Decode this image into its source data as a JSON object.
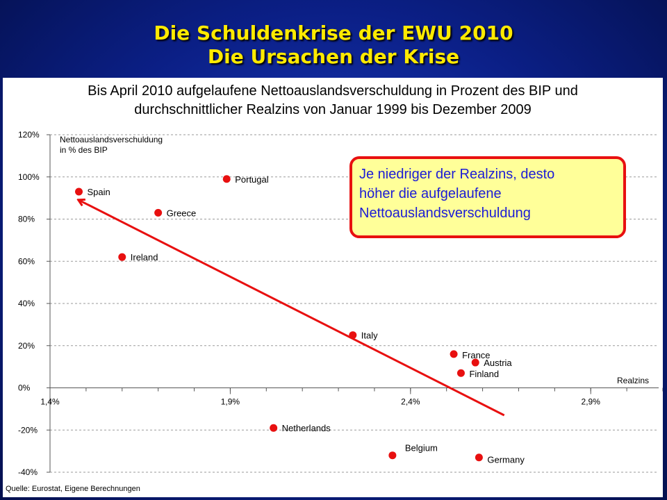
{
  "slide": {
    "title_line1": "Die Schuldenkrise der EWU 2010",
    "title_line2": "Die Ursachen der Krise"
  },
  "chart_data": {
    "type": "scatter",
    "title_line1": "Bis April 2010 aufgelaufene Nettoauslandsverschuldung in Prozent des BIP und",
    "title_line2": "durchschnittlicher Realzins von Januar 1999 bis Dezember 2009",
    "ylabel_line1": "Nettoauslandsverschuldung",
    "ylabel_line2": "in % des BIP",
    "xlabel": "Realzins",
    "xlim": [
      1.4,
      3.1
    ],
    "ylim": [
      -40,
      120
    ],
    "xticks": [
      1.4,
      1.9,
      2.4,
      2.9
    ],
    "xtick_labels": [
      "1,4%",
      "1,9%",
      "2,4%",
      "2,9%"
    ],
    "yticks": [
      120,
      100,
      80,
      60,
      40,
      20,
      0,
      -20,
      -40
    ],
    "ytick_labels": [
      "120%",
      "100%",
      "80%",
      "60%",
      "40%",
      "20%",
      "0%",
      "-20%",
      "-40%"
    ],
    "points": [
      {
        "label": "Spain",
        "x": 1.48,
        "y": 93
      },
      {
        "label": "Portugal",
        "x": 1.89,
        "y": 99
      },
      {
        "label": "Greece",
        "x": 1.7,
        "y": 83
      },
      {
        "label": "Ireland",
        "x": 1.6,
        "y": 62
      },
      {
        "label": "Italy",
        "x": 2.24,
        "y": 25
      },
      {
        "label": "France",
        "x": 2.52,
        "y": 16
      },
      {
        "label": "Austria",
        "x": 2.58,
        "y": 12
      },
      {
        "label": "Finland",
        "x": 2.54,
        "y": 7
      },
      {
        "label": "Netherlands",
        "x": 2.02,
        "y": -19
      },
      {
        "label": "Belgium",
        "x": 2.35,
        "y": -32
      },
      {
        "label": "Germany",
        "x": 2.59,
        "y": -33
      }
    ],
    "trend_arrow": {
      "from": {
        "x": 2.66,
        "y": -13
      },
      "to": {
        "x": 1.48,
        "y": 89
      }
    },
    "point_color": "#e81010",
    "arrow_color": "#e81010",
    "grid": "horizontal dashed"
  },
  "callout": {
    "line1": "Je niedriger der Realzins, desto",
    "line2": "höher die aufgelaufene",
    "line3": "Nettoauslandsverschuldung"
  },
  "source": "Quelle: Eurostat, Eigene Berechnungen"
}
